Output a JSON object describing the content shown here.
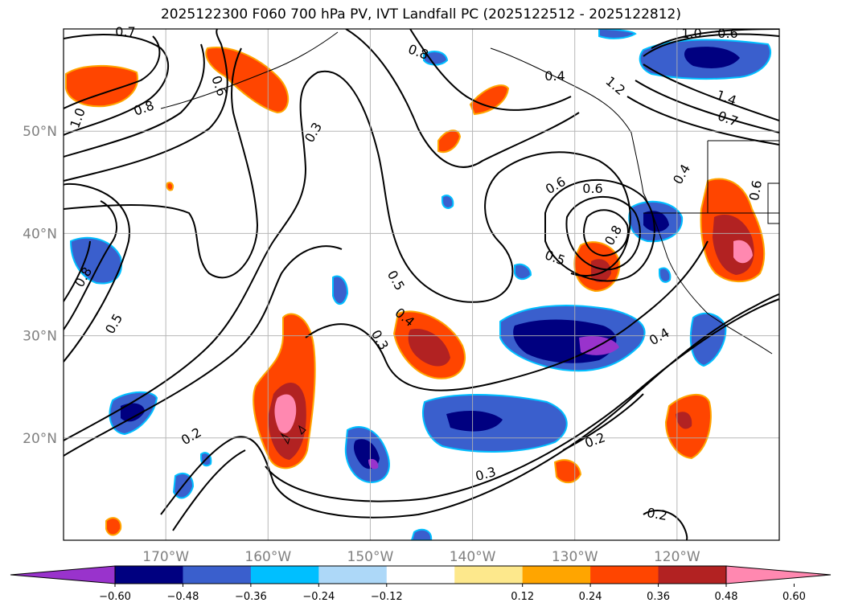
{
  "title": "2025122300 F060 700 hPa PV, IVT Landfall PC (2025122512 - 2025122812)",
  "map": {
    "lon_range": [
      -180,
      -110
    ],
    "lat_range": [
      10,
      60
    ],
    "lat_ticks": [
      {
        "value": 50,
        "label": "50°N"
      },
      {
        "value": 40,
        "label": "40°N"
      },
      {
        "value": 30,
        "label": "30°N"
      },
      {
        "value": 20,
        "label": "20°N"
      }
    ],
    "lon_ticks": [
      {
        "value": -170,
        "label": "170°W"
      },
      {
        "value": -160,
        "label": "160°W"
      },
      {
        "value": -150,
        "label": "150°W"
      },
      {
        "value": -140,
        "label": "140°W"
      },
      {
        "value": -130,
        "label": "130°W"
      },
      {
        "value": -120,
        "label": "120°W"
      }
    ],
    "gridlines": true,
    "contour_labels": [
      "0.7",
      "0.8",
      "1.0",
      "0.6",
      "0.3",
      "0.8",
      "0.5",
      "0.4",
      "0.3",
      "0.2",
      "0.3",
      "0.2",
      "0.2",
      "0.4",
      "0.6",
      "0.8",
      "0.5",
      "0.4",
      "0.4",
      "0.6",
      "1.2",
      "1.4",
      "0.7",
      "1.0",
      "0.6",
      "0.5",
      "0.8",
      "0.6"
    ]
  },
  "colorbar": {
    "ticks": [
      "−0.60",
      "−0.48",
      "−0.36",
      "−0.24",
      "−0.12",
      "0.12",
      "0.24",
      "0.36",
      "0.48",
      "0.60"
    ],
    "colors": [
      "#9933cc",
      "#000080",
      "#3a5fcd",
      "#00bfff",
      "#add8f8",
      "#ffffff",
      "#fde88c",
      "#ffa500",
      "#ff4500",
      "#b22222",
      "#ff88b0"
    ]
  },
  "shading_colors": {
    "neg_strong": "#000080",
    "neg_mid": "#3a5fcd",
    "neg_light": "#00bfff",
    "neg_purple": "#9933cc",
    "pos_red": "#ff4500",
    "pos_dark": "#b22222",
    "pos_pink": "#ff88b0",
    "pos_orange": "#ffa500"
  }
}
